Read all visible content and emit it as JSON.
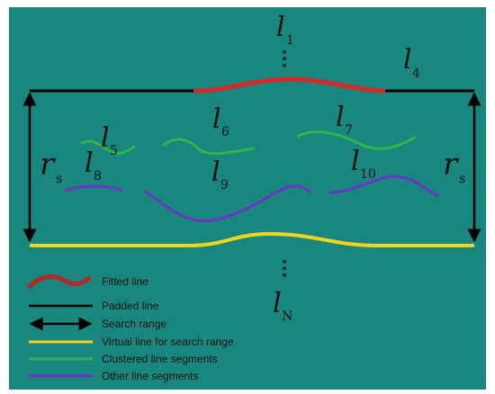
{
  "colors": {
    "background": "#19877d",
    "fitted": "#d42a2a",
    "padded": "#000000",
    "search_range": "#000000",
    "virtual": "#f0d51e",
    "clustered": "#34b24c",
    "other": "#6b35c8"
  },
  "labels": {
    "l1": {
      "main": "l",
      "sub": "1"
    },
    "l4": {
      "main": "l",
      "sub": "4"
    },
    "l5": {
      "main": "l",
      "sub": "5"
    },
    "l6": {
      "main": "l",
      "sub": "6"
    },
    "l7": {
      "main": "l",
      "sub": "7"
    },
    "l8": {
      "main": "l",
      "sub": "8"
    },
    "l9": {
      "main": "l",
      "sub": "9"
    },
    "l10": {
      "main": "l",
      "sub": "10"
    },
    "lN": {
      "main": "l",
      "sub": "N"
    },
    "rs_left": {
      "main": "r",
      "sub": "s"
    },
    "rs_right": {
      "main": "r",
      "sub": "s"
    },
    "ellipsis_top": "⋮",
    "ellipsis_bottom": "⋮"
  },
  "legend": [
    {
      "key": "fitted",
      "label": "Fitted line",
      "color": "#d42a2a",
      "style": "curve"
    },
    {
      "key": "padded",
      "label": "Padded line",
      "color": "#000000",
      "style": "line"
    },
    {
      "key": "search",
      "label": "Search range",
      "color": "#000000",
      "style": "arrow"
    },
    {
      "key": "virtual",
      "label": "Virtual line for search range",
      "color": "#f0d51e",
      "style": "line"
    },
    {
      "key": "clustered",
      "label": "Clustered line segments",
      "color": "#34b24c",
      "style": "line"
    },
    {
      "key": "other",
      "label": "Other line segments",
      "color": "#6b35c8",
      "style": "line"
    }
  ]
}
